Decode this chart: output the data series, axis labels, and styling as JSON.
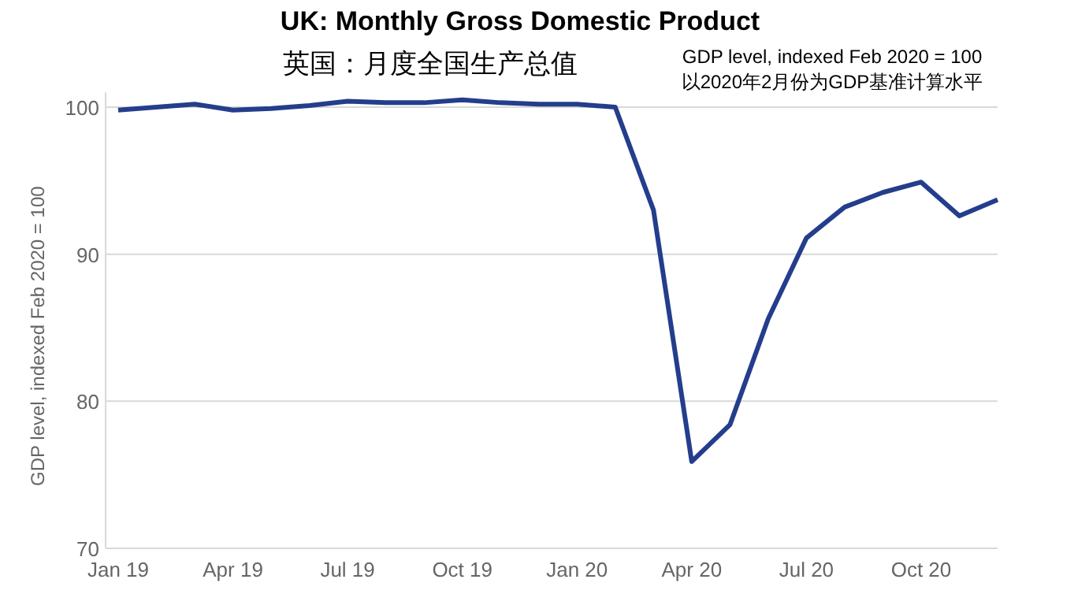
{
  "chart_data": {
    "type": "line",
    "title": "UK: Monthly Gross Domestic Product",
    "subtitle": "英国：月度全国生产总值",
    "annotations": [
      "GDP level, indexed Feb 2020 = 100",
      "以2020年2月份为GDP基准计算水平"
    ],
    "ylabel": "GDP level, indexed Feb 2020 = 100",
    "categories": [
      "Jan 19",
      null,
      null,
      "Apr 19",
      null,
      null,
      "Jul 19",
      null,
      null,
      "Oct 19",
      null,
      null,
      "Jan 20",
      null,
      null,
      "Apr 20",
      null,
      null,
      "Jul 20",
      null,
      null,
      "Oct 20",
      null,
      null
    ],
    "series": [
      {
        "color": "#243d8c",
        "values": [
          99.8,
          100.0,
          100.2,
          99.8,
          99.9,
          100.1,
          100.4,
          100.3,
          100.3,
          100.5,
          100.3,
          100.2,
          100.2,
          100.0,
          93.0,
          75.9,
          78.4,
          85.6,
          91.1,
          93.2,
          94.2,
          94.9,
          92.6,
          93.7
        ]
      }
    ],
    "ylim": [
      70,
      101
    ],
    "yticks": [
      70,
      80,
      90,
      100
    ],
    "grid": "y",
    "marker": "none",
    "line_style": "solid"
  }
}
